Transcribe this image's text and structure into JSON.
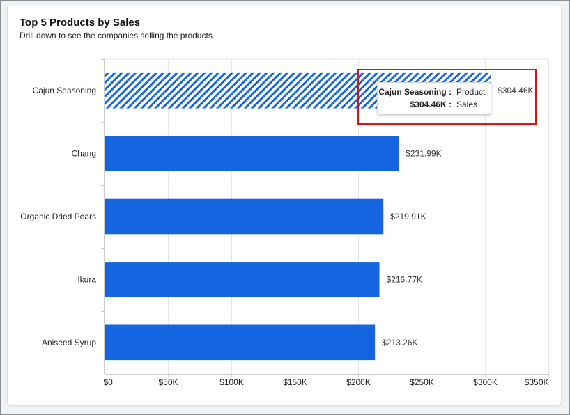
{
  "title": "Top 5 Products by Sales",
  "subtitle": "Drill down to see the companies selling the products.",
  "colors": {
    "bar": "#1565e0",
    "highlight_border": "#d4141b",
    "grid": "#e4e6ea"
  },
  "chart_data": {
    "type": "bar",
    "orientation": "horizontal",
    "categories": [
      "Cajun Seasoning",
      "Chang",
      "Organic Dried Pears",
      "Ikura",
      "Aniseed Syrup"
    ],
    "values": [
      304460,
      231990,
      219910,
      216770,
      213260
    ],
    "data_labels": [
      "$304.46K",
      "$231.99K",
      "$219.91K",
      "$216.77K",
      "$213.26K"
    ],
    "xlim": [
      0,
      350000
    ],
    "x_ticks": [
      0,
      50000,
      100000,
      150000,
      200000,
      250000,
      300000,
      350000
    ],
    "x_tick_labels": [
      "$0",
      "$50K",
      "$100K",
      "$150K",
      "$200K",
      "$250K",
      "$300K",
      "$350K"
    ],
    "hovered_index": 0,
    "grid": true
  },
  "tooltip": {
    "row1_key": "Cajun Seasoning :",
    "row1_value": "Product",
    "row2_key": "$304.46K :",
    "row2_value": "Sales"
  }
}
